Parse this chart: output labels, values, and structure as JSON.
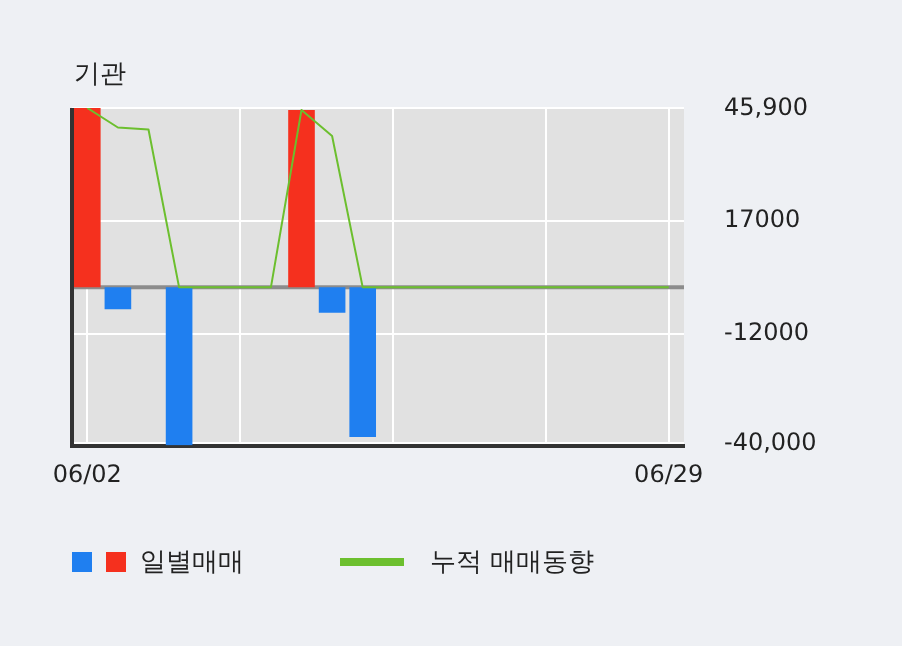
{
  "chart_data": {
    "type": "bar",
    "title": "기관",
    "categories": [
      "06/02",
      null,
      null,
      null,
      null,
      null,
      null,
      null,
      null,
      null,
      null,
      null,
      null,
      null,
      null,
      null,
      null,
      null,
      null,
      "06/29"
    ],
    "series": [
      {
        "name": "일별매매",
        "colors": [
          "#f5301e",
          "#1f7ff0",
          "#1f7ff0",
          "#1f7ff0",
          "#1f7ff0",
          "#1f7ff0",
          "#1f7ff0",
          "#f5301e",
          "#1f7ff0",
          "#1f7ff0",
          "#1f7ff0",
          "#1f7ff0",
          "#1f7ff0",
          "#1f7ff0",
          "#1f7ff0",
          "#1f7ff0",
          "#1f7ff0",
          "#1f7ff0",
          "#1f7ff0",
          "#1f7ff0"
        ],
        "values": [
          46000,
          -5600,
          0,
          -40500,
          0,
          0,
          0,
          45500,
          -6500,
          -38400,
          0,
          0,
          0,
          0,
          0,
          0,
          0,
          0,
          0,
          0
        ]
      },
      {
        "name": "누적 매매동향",
        "type": "line",
        "color": "#6cbf2e",
        "values": [
          46000,
          41000,
          40500,
          0,
          0,
          0,
          0,
          45500,
          38800,
          0,
          0,
          0,
          0,
          0,
          0,
          0,
          0,
          0,
          0,
          0
        ]
      }
    ],
    "ylim": [
      -40600,
      46000
    ],
    "yticks": [
      {
        "value": 45900,
        "label": "45,900"
      },
      {
        "value": 17000,
        "label": "17000"
      },
      {
        "value": -12000,
        "label": "-12000"
      },
      {
        "value": -40000,
        "label": "-40,000"
      }
    ],
    "ref_lines": [
      {
        "axis": "y",
        "value": 0,
        "color": "#8c8c8c"
      }
    ],
    "grid": true,
    "legend": "bottom"
  }
}
